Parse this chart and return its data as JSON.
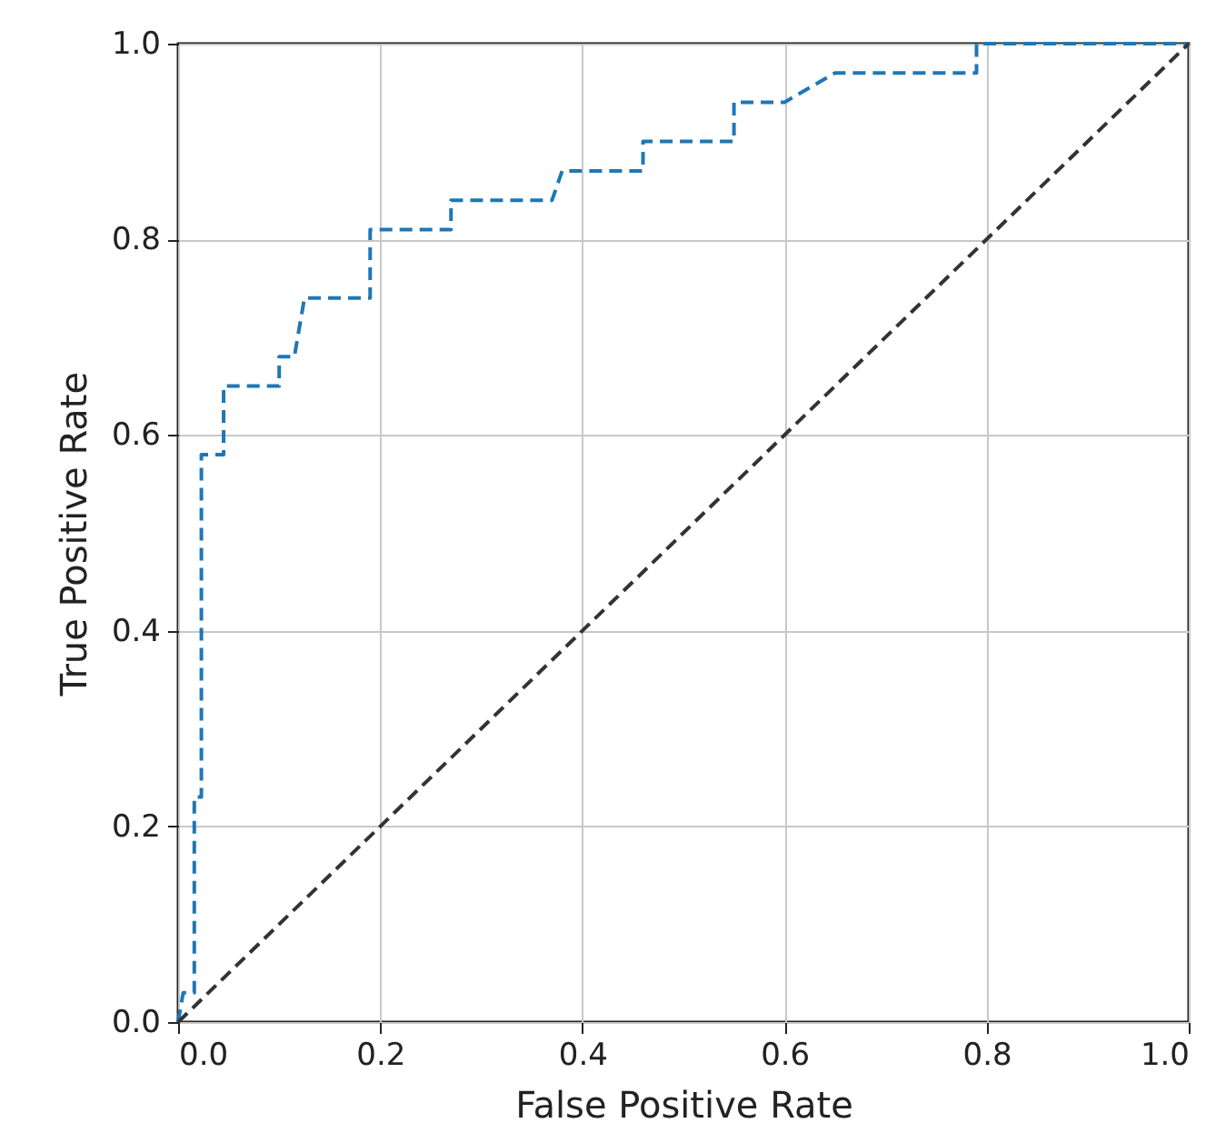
{
  "chart_data": {
    "type": "line",
    "xlabel": "False Positive Rate",
    "ylabel": "True Positive Rate",
    "xlim": [
      0,
      1
    ],
    "ylim": [
      0,
      1
    ],
    "xticks": [
      {
        "value": 0,
        "label": "0.0"
      },
      {
        "value": 0.2,
        "label": "0.2"
      },
      {
        "value": 0.4,
        "label": "0.4"
      },
      {
        "value": 0.6,
        "label": "0.6"
      },
      {
        "value": 0.8,
        "label": "0.8"
      },
      {
        "value": 1,
        "label": "1.0"
      }
    ],
    "yticks": [
      {
        "value": 0,
        "label": "0.0"
      },
      {
        "value": 0.2,
        "label": "0.2"
      },
      {
        "value": 0.4,
        "label": "0.4"
      },
      {
        "value": 0.6,
        "label": "0.6"
      },
      {
        "value": 0.8,
        "label": "0.8"
      },
      {
        "value": 1,
        "label": "1.0"
      }
    ],
    "grid": true,
    "line_style": "dashed",
    "marker": "none",
    "series": [
      {
        "color": "#1f77b4",
        "x": [
          0,
          0.005,
          0.016,
          0.016,
          0.023,
          0.023,
          0.045,
          0.045,
          0.1,
          0.1,
          0.115,
          0.125,
          0.19,
          0.19,
          0.27,
          0.27,
          0.37,
          0.38,
          0.46,
          0.46,
          0.55,
          0.55,
          0.6,
          0.65,
          0.79,
          0.79,
          1
        ],
        "values": [
          0,
          0.03,
          0.03,
          0.23,
          0.23,
          0.58,
          0.58,
          0.65,
          0.65,
          0.68,
          0.68,
          0.74,
          0.74,
          0.81,
          0.81,
          0.84,
          0.84,
          0.87,
          0.87,
          0.9,
          0.9,
          0.94,
          0.94,
          0.97,
          0.97,
          1,
          1
        ]
      },
      {
        "color": "#333333",
        "x": [
          0,
          1
        ],
        "values": [
          0,
          1
        ]
      }
    ]
  }
}
